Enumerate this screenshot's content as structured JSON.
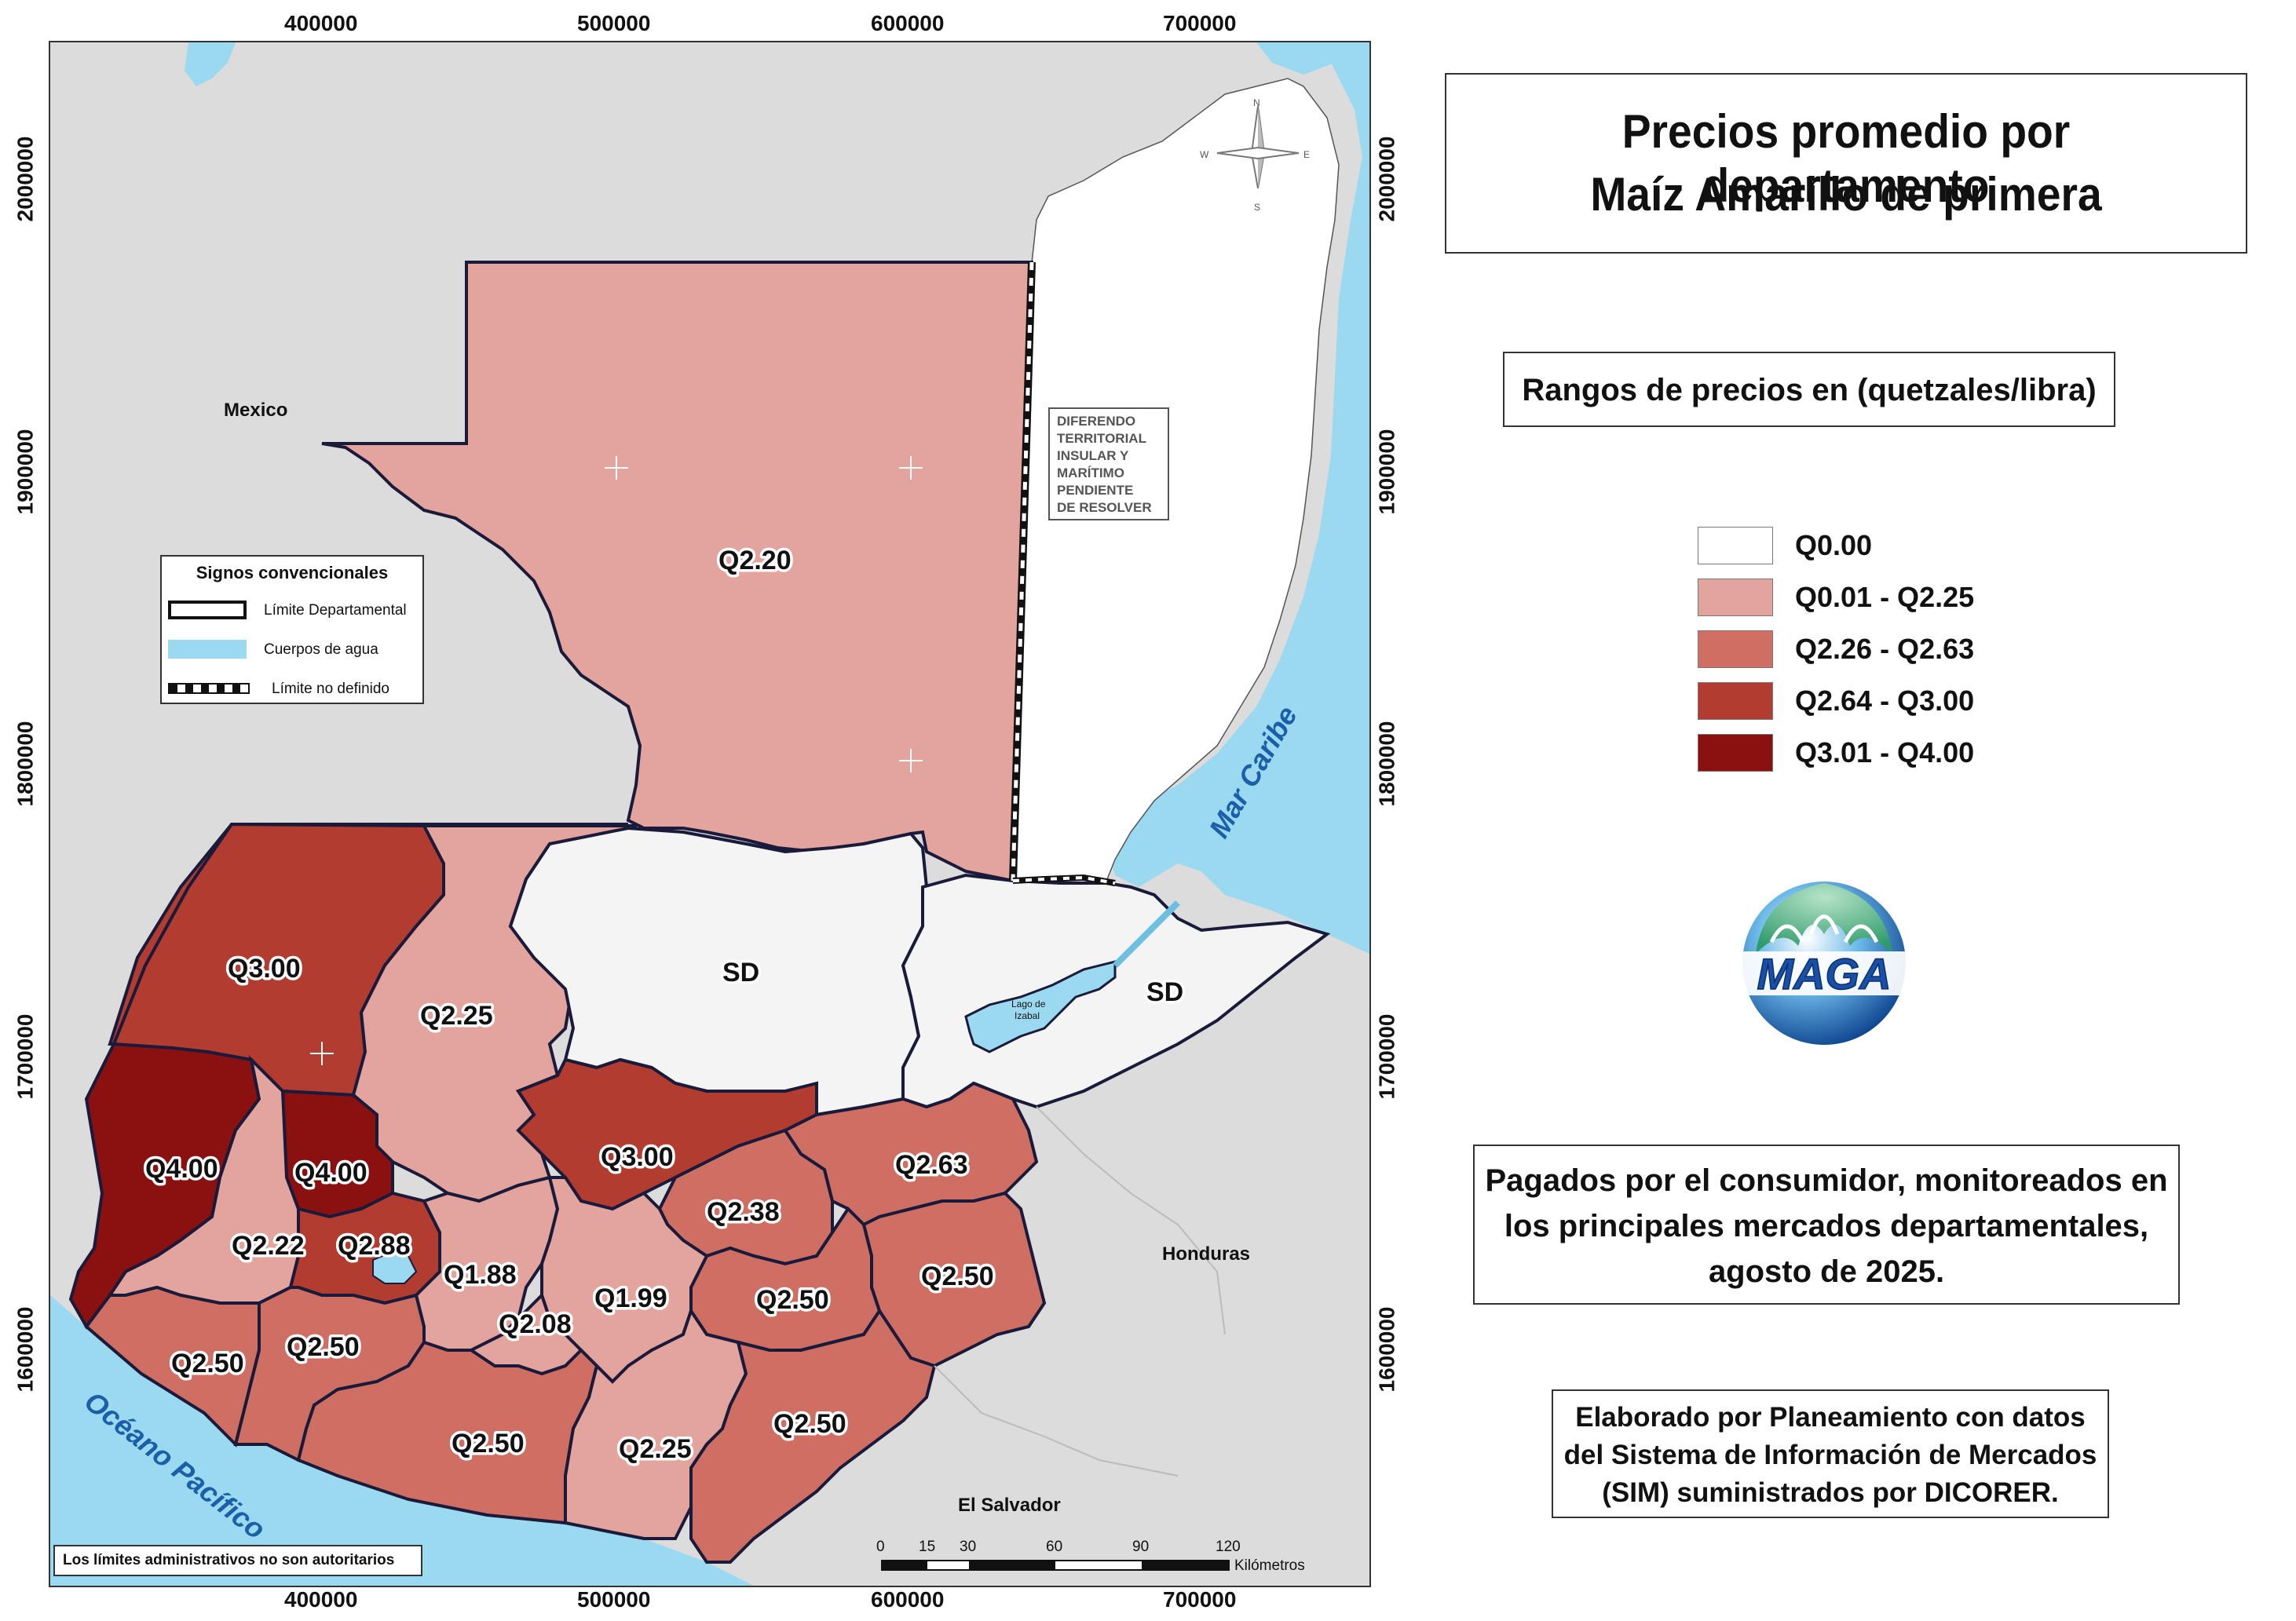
{
  "title": {
    "line1": "Precios promedio por departamento",
    "line2": "Maíz Amarillo de primera"
  },
  "range_title": "Rangos de precios en (quetzales/libra)",
  "legend": [
    {
      "label": "Q0.00",
      "color": "#ffffff"
    },
    {
      "label": "Q0.01 - Q2.25",
      "color": "#e4a49e"
    },
    {
      "label": "Q2.26 - Q2.63",
      "color": "#cf6f64"
    },
    {
      "label": "Q2.64 - Q3.00",
      "color": "#b23c30"
    },
    {
      "label": "Q3.01 - Q4.00",
      "color": "#8b1111"
    }
  ],
  "description": {
    "line1": "Pagados por el consumidor, monitoreados en",
    "line2": "los principales mercados departamentales,",
    "line3": "agosto de 2025."
  },
  "credits": {
    "line1": "Elaborado por Planeamiento con datos",
    "line2": "del Sistema de Información de Mercados",
    "line3": "(SIM) suministrados por DICORER."
  },
  "logo": "MAGA",
  "axes": {
    "x_ticks": [
      "400000",
      "500000",
      "600000",
      "700000"
    ],
    "y_ticks": [
      "2000000",
      "1900000",
      "1800000",
      "1700000",
      "1600000"
    ]
  },
  "map": {
    "countries": {
      "mexico": "Mexico",
      "honduras": "Honduras",
      "el_salvador": "El Salvador"
    },
    "seas": {
      "caribe": "Mar Caribe",
      "pacifico": "Océano Pacífico"
    },
    "lake": {
      "line1": "Lago de",
      "line2": "Izabal"
    },
    "dispute": [
      "DIFERENDO",
      "TERRITORIAL",
      "INSULAR Y",
      "MARÍTIMO",
      "PENDIENTE",
      "DE RESOLVER"
    ],
    "compass": {
      "n": "N",
      "s": "S",
      "e": "E",
      "w": "W"
    },
    "prices": {
      "peten": "Q2.20",
      "huehuetenango": "Q3.00",
      "quiche": "Q2.25",
      "alta_verapaz": "SD",
      "izabal": "SD",
      "san_marcos": "Q4.00",
      "totonicapan_q": "Q4.00",
      "quetzaltenango": "Q2.22",
      "solola": "Q2.88",
      "chimaltenango": "Q1.88",
      "baja_verapaz": "Q3.00",
      "el_progreso": "Q2.38",
      "zacapa": "Q2.63",
      "guatemala": "Q1.99",
      "sacatepequez": "Q2.08",
      "jalapa": "Q2.50",
      "chiquimula": "Q2.50",
      "retalhuleu": "Q2.50",
      "suchitepequez": "Q2.50",
      "escuintla": "Q2.50",
      "santa_rosa": "Q2.25",
      "jutiapa": "Q2.50"
    }
  },
  "conventions": {
    "title": "Signos convencionales",
    "items": [
      {
        "label": "Límite Departamental"
      },
      {
        "label": "Cuerpos de agua"
      },
      {
        "label": "Límite no definido"
      }
    ]
  },
  "disclaimer": "Los límites administrativos no son autoritarios",
  "scale": {
    "ticks": [
      "0",
      "15",
      "30",
      "60",
      "90",
      "120"
    ],
    "unit": "Kilómetros"
  }
}
